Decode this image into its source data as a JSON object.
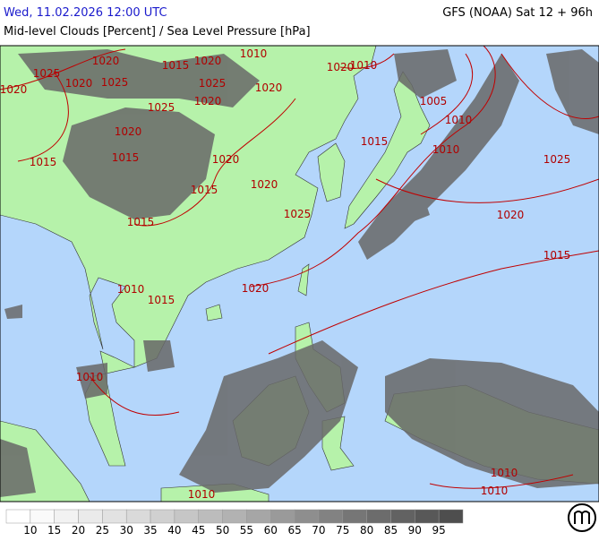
{
  "header": {
    "title": "Wed, 11.02.2026 12:00 UTC",
    "model": "GFS (NOAA) Sat 12 + 96h",
    "subtitle": "Mid-level Clouds [Percent] / Sea Level Pressure [hPa]"
  },
  "isobar_labels": [
    "1025",
    "1020",
    "1015",
    "1020",
    "1010",
    "1020",
    "1020",
    "1025",
    "1025",
    "1020",
    "1020",
    "1010",
    "1005",
    "1010",
    "1025",
    "1020",
    "1020",
    "1015",
    "1010",
    "1015",
    "1015",
    "1020",
    "1025",
    "1020",
    "1015",
    "1025",
    "1020",
    "1015",
    "1015",
    "1020",
    "1010",
    "1015",
    "1010",
    "1010",
    "1010",
    "1010"
  ],
  "legend": {
    "labels": [
      "10",
      "15",
      "20",
      "25",
      "30",
      "35",
      "40",
      "45",
      "50",
      "55",
      "60",
      "65",
      "70",
      "75",
      "80",
      "85",
      "90",
      "95"
    ],
    "colors": [
      "#ffffff",
      "#fafafa",
      "#f2f2f2",
      "#eaeaea",
      "#e2e2e2",
      "#dadada",
      "#d0d0d0",
      "#c6c6c6",
      "#bcbcbc",
      "#b2b2b2",
      "#a6a6a6",
      "#9a9a9a",
      "#8e8e8e",
      "#828282",
      "#767676",
      "#6c6c6c",
      "#626262",
      "#585858",
      "#4e4e4e"
    ]
  }
}
